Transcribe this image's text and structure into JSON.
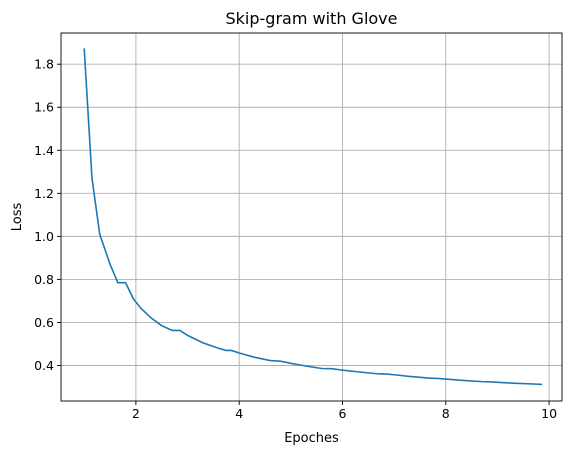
{
  "chart_data": {
    "type": "line",
    "title": "Skip-gram with Glove",
    "xlabel": "Epoches",
    "ylabel": "Loss",
    "xlim": [
      0.55,
      10.25
    ],
    "ylim": [
      0.235,
      1.945
    ],
    "xticks": [
      2,
      4,
      6,
      8,
      10
    ],
    "yticks": [
      0.4,
      0.6,
      0.8,
      1.0,
      1.2,
      1.4,
      1.6,
      1.8
    ],
    "xtick_labels": [
      "2",
      "4",
      "6",
      "8",
      "10"
    ],
    "ytick_labels": [
      "0.4",
      "0.6",
      "0.8",
      "1.0",
      "1.2",
      "1.4",
      "1.6",
      "1.8"
    ],
    "grid": true,
    "legend": false,
    "line_color": "#1f77b4",
    "series": [
      {
        "x": [
          1.0,
          1.15,
          1.3,
          1.5,
          1.65,
          1.8,
          1.95,
          2.1,
          2.3,
          2.5,
          2.7,
          2.85,
          3.0,
          3.3,
          3.6,
          3.75,
          3.85,
          4.0,
          4.3,
          4.6,
          4.8,
          5.0,
          5.3,
          5.6,
          5.8,
          6.0,
          6.4,
          6.7,
          6.85,
          7.0,
          7.3,
          7.7,
          7.85,
          8.0,
          8.3,
          8.7,
          8.85,
          9.0,
          9.3,
          9.7,
          9.85
        ],
        "y": [
          1.87,
          1.27,
          1.01,
          0.87,
          0.785,
          0.785,
          0.71,
          0.665,
          0.62,
          0.585,
          0.563,
          0.563,
          0.54,
          0.505,
          0.48,
          0.47,
          0.47,
          0.458,
          0.438,
          0.423,
          0.42,
          0.41,
          0.397,
          0.386,
          0.385,
          0.378,
          0.368,
          0.361,
          0.36,
          0.357,
          0.349,
          0.341,
          0.34,
          0.337,
          0.331,
          0.325,
          0.324,
          0.322,
          0.318,
          0.314,
          0.312
        ]
      }
    ]
  }
}
